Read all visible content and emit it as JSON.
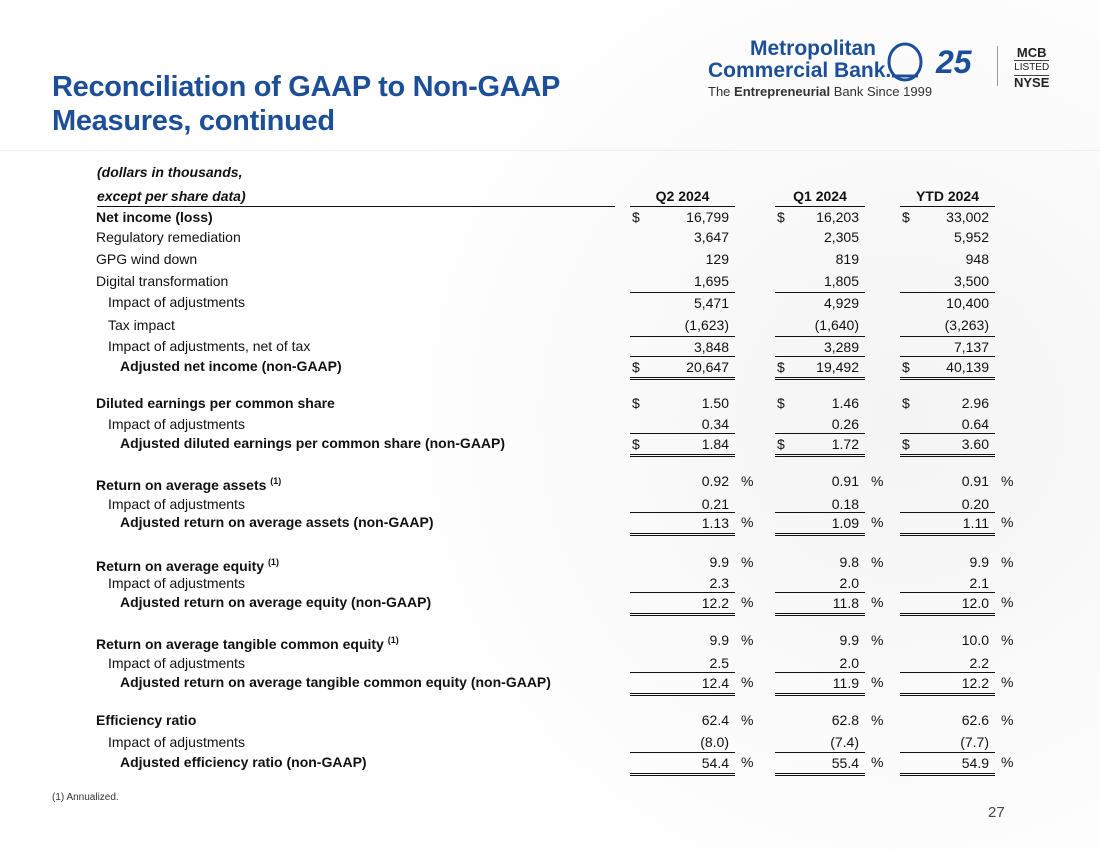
{
  "header": {
    "title": "Reconciliation of GAAP to Non-GAAP Measures, continued",
    "logo": {
      "name_line1": "Metropolitan",
      "name_line2": "Commercial Bank.",
      "tagline_pre": "The",
      "tagline_bold": "Entrepreneurial",
      "tagline_post": "Bank Since 1999",
      "anniversary": "25",
      "exchange": [
        "MCB",
        "LISTED",
        "NYSE"
      ]
    }
  },
  "table": {
    "units_line1": "(dollars in thousands,",
    "units_line2": "except per share data)",
    "columns": [
      "Q2 2024",
      "Q1 2024",
      "YTD 2024"
    ],
    "rows": [
      {
        "label": "Net income (loss)",
        "currency": "$",
        "values": [
          "16,799",
          "16,203",
          "33,002"
        ]
      },
      {
        "label": "Regulatory remediation",
        "values": [
          "3,647",
          "2,305",
          "5,952"
        ]
      },
      {
        "label": "GPG wind down",
        "values": [
          "129",
          "819",
          "948"
        ]
      },
      {
        "label": "Digital transformation",
        "values": [
          "1,695",
          "1,805",
          "3,500"
        ]
      },
      {
        "label": "Impact of adjustments",
        "values": [
          "5,471",
          "4,929",
          "10,400"
        ]
      },
      {
        "label": "Tax impact",
        "values": [
          "(1,623)",
          "(1,640)",
          "(3,263)"
        ]
      },
      {
        "label": "Impact of adjustments, net of tax",
        "values": [
          "3,848",
          "3,289",
          "7,137"
        ]
      },
      {
        "label": "Adjusted net income (non-GAAP)",
        "currency": "$",
        "values": [
          "20,647",
          "19,492",
          "40,139"
        ]
      },
      {
        "label": "Diluted earnings per common share",
        "currency": "$",
        "values": [
          "1.50",
          "1.46",
          "2.96"
        ]
      },
      {
        "label": "Impact of adjustments",
        "values": [
          "0.34",
          "0.26",
          "0.64"
        ]
      },
      {
        "label": "Adjusted diluted earnings per common share (non-GAAP)",
        "currency": "$",
        "values": [
          "1.84",
          "1.72",
          "3.60"
        ]
      },
      {
        "label": "Return on average assets",
        "note": "(1)",
        "unit": "%",
        "values": [
          "0.92",
          "0.91",
          "0.91"
        ]
      },
      {
        "label": "Impact of adjustments",
        "values": [
          "0.21",
          "0.18",
          "0.20"
        ]
      },
      {
        "label": "Adjusted return on average assets (non-GAAP)",
        "unit": "%",
        "values": [
          "1.13",
          "1.09",
          "1.11"
        ]
      },
      {
        "label": "Return on average equity",
        "note": "(1)",
        "unit": "%",
        "values": [
          "9.9",
          "9.8",
          "9.9"
        ]
      },
      {
        "label": "Impact of adjustments",
        "values": [
          "2.3",
          "2.0",
          "2.1"
        ]
      },
      {
        "label": "Adjusted return on average equity (non-GAAP)",
        "unit": "%",
        "values": [
          "12.2",
          "11.8",
          "12.0"
        ]
      },
      {
        "label": "Return on average tangible common equity",
        "note": "(1)",
        "unit": "%",
        "values": [
          "9.9",
          "9.9",
          "10.0"
        ]
      },
      {
        "label": "Impact of adjustments",
        "values": [
          "2.5",
          "2.0",
          "2.2"
        ]
      },
      {
        "label": "Adjusted return on average tangible common equity (non-GAAP)",
        "unit": "%",
        "values": [
          "12.4",
          "11.9",
          "12.2"
        ]
      },
      {
        "label": "Efficiency ratio",
        "unit": "%",
        "values": [
          "62.4",
          "62.8",
          "62.6"
        ]
      },
      {
        "label": "Impact of adjustments",
        "values": [
          "(8.0)",
          "(7.4)",
          "(7.7)"
        ]
      },
      {
        "label": "Adjusted efficiency ratio (non-GAAP)",
        "unit": "%",
        "values": [
          "54.4",
          "55.4",
          "54.9"
        ]
      }
    ]
  },
  "footnote": "(1) Annualized.",
  "page_number": "27"
}
